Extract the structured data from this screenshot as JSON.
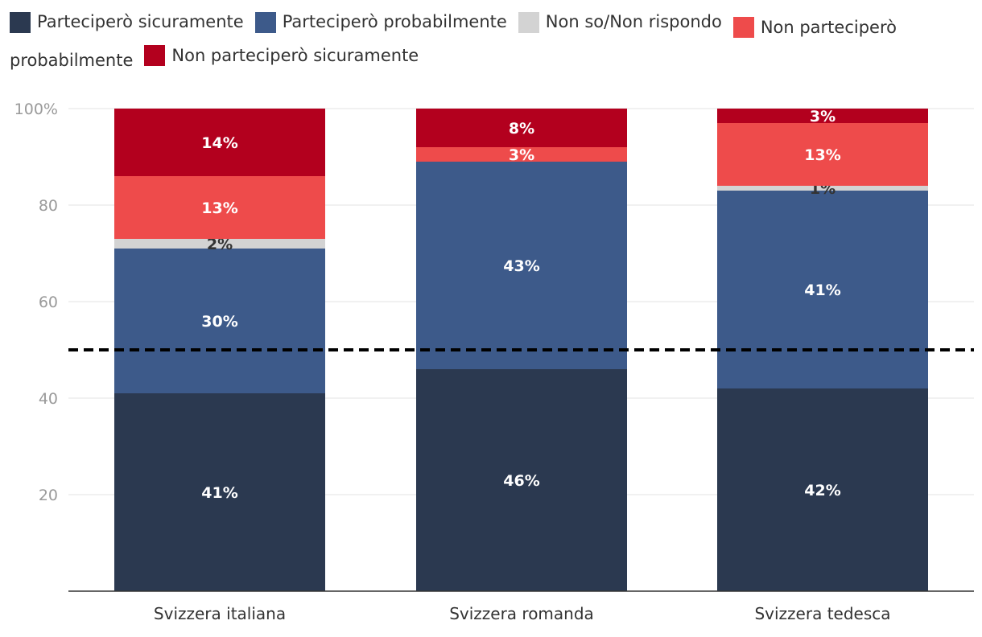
{
  "chart_data": {
    "type": "bar",
    "stacked": true,
    "categories": [
      "Svizzera italiana",
      "Svizzera romanda",
      "Svizzera tedesca"
    ],
    "series": [
      {
        "name": "Parteciperò sicuramente",
        "color": "#2b3950",
        "values": [
          41,
          46,
          42
        ],
        "labels": [
          "41%",
          "46%",
          "42%"
        ]
      },
      {
        "name": "Parteciperò probabilmente",
        "color": "#3d5a8a",
        "values": [
          30,
          43,
          41
        ],
        "labels": [
          "30%",
          "43%",
          "41%"
        ]
      },
      {
        "name": "Non so/Non rispondo",
        "color": "#d3d3d3",
        "values": [
          2,
          0,
          1
        ],
        "labels": [
          "2%",
          "",
          "1%"
        ]
      },
      {
        "name": "Non parteciperò probabilmente",
        "color": "#ee4b4b",
        "values": [
          13,
          3,
          13
        ],
        "labels": [
          "13%",
          "3%",
          "13%"
        ]
      },
      {
        "name": "Non parteciperò sicuramente",
        "color": "#b3001e",
        "values": [
          14,
          8,
          3
        ],
        "labels": [
          "14%",
          "8%",
          "3%"
        ]
      }
    ],
    "yticks": [
      {
        "value": 20,
        "label": "20"
      },
      {
        "value": 40,
        "label": "40"
      },
      {
        "value": 60,
        "label": "60"
      },
      {
        "value": 80,
        "label": "80"
      },
      {
        "value": 100,
        "label": "100%"
      }
    ],
    "ylim": [
      0,
      100
    ],
    "reference_line": 50,
    "grid": true,
    "legend_position": "top"
  }
}
